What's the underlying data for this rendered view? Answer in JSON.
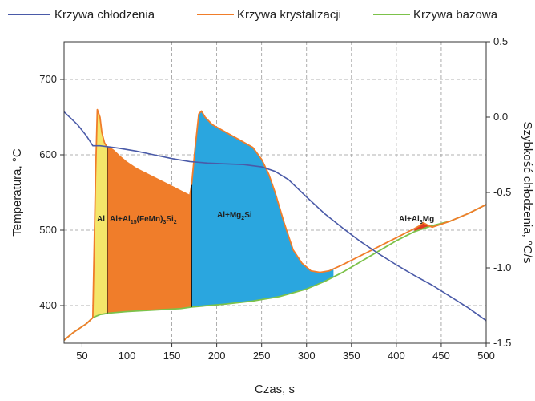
{
  "chart_data": {
    "type": "line",
    "title": "",
    "legend": {
      "placement": "top",
      "entries": [
        {
          "name": "Krzywa chłodzenia",
          "color": "#4a5aa8"
        },
        {
          "name": "Krzywa krystalizacji",
          "color": "#f07d2a"
        },
        {
          "name": "Krzywa bazowa",
          "color": "#7cc24a"
        }
      ]
    },
    "xaxis": {
      "label": "Czas, s",
      "range": [
        30,
        500
      ],
      "ticks": [
        50,
        100,
        150,
        200,
        250,
        300,
        350,
        400,
        450,
        500
      ]
    },
    "yaxis_left": {
      "label": "Temperatura, °C",
      "range": [
        350,
        750
      ],
      "ticks": [
        400,
        500,
        600,
        700
      ]
    },
    "yaxis_right": {
      "label": "Szybkość chłodzenia, °C/s",
      "range": [
        -1.5,
        0.5
      ],
      "ticks": [
        "0.5",
        "0.0",
        "-0.5",
        "-1.0",
        "-1.5"
      ],
      "tick_values": [
        0.5,
        0.0,
        -0.5,
        -1.0,
        -1.5
      ]
    },
    "series": [
      {
        "name": "Krzywa chłodzenia",
        "axis": "left",
        "color": "#4a5aa8",
        "x": [
          30,
          45,
          55,
          62,
          70,
          90,
          110,
          130,
          150,
          170,
          190,
          210,
          230,
          250,
          265,
          280,
          300,
          320,
          340,
          360,
          380,
          400,
          420,
          440,
          460,
          480,
          500
        ],
        "y": [
          657,
          640,
          625,
          612,
          612,
          609,
          605,
          600,
          595,
          591,
          589,
          588,
          587,
          584,
          578,
          567,
          544,
          522,
          503,
          485,
          469,
          454,
          440,
          427,
          412,
          397,
          380
        ]
      },
      {
        "name": "Krzywa krystalizacji",
        "axis": "right",
        "color": "#f07d2a",
        "x": [
          30,
          40,
          55,
          62,
          65,
          67,
          70,
          72,
          75,
          78,
          80,
          85,
          92,
          100,
          110,
          120,
          130,
          140,
          150,
          160,
          170,
          172,
          176,
          180,
          183,
          187,
          195,
          210,
          225,
          240,
          250,
          258,
          265,
          275,
          285,
          295,
          305,
          315,
          325,
          340,
          360,
          380,
          400,
          420,
          426,
          430,
          436,
          440,
          460,
          480,
          500
        ],
        "y": [
          -1.48,
          -1.43,
          -1.37,
          -1.33,
          -0.4,
          0.05,
          0.0,
          -0.1,
          -0.17,
          -0.2,
          -0.2,
          -0.22,
          -0.26,
          -0.3,
          -0.34,
          -0.37,
          -0.4,
          -0.43,
          -0.46,
          -0.49,
          -0.52,
          -0.45,
          -0.2,
          0.02,
          0.04,
          0.0,
          -0.05,
          -0.1,
          -0.15,
          -0.2,
          -0.28,
          -0.38,
          -0.5,
          -0.7,
          -0.88,
          -0.97,
          -1.02,
          -1.03,
          -1.02,
          -0.98,
          -0.92,
          -0.86,
          -0.8,
          -0.74,
          -0.72,
          -0.7,
          -0.72,
          -0.73,
          -0.69,
          -0.64,
          -0.58
        ]
      },
      {
        "name": "Krzywa bazowa",
        "axis": "right",
        "color": "#7cc24a",
        "x": [
          30,
          40,
          55,
          62,
          70,
          80,
          100,
          130,
          160,
          172,
          190,
          210,
          240,
          270,
          300,
          320,
          340,
          360,
          380,
          400,
          420,
          440,
          460,
          480,
          500
        ],
        "y": [
          -1.48,
          -1.43,
          -1.37,
          -1.33,
          -1.31,
          -1.3,
          -1.29,
          -1.28,
          -1.27,
          -1.26,
          -1.25,
          -1.24,
          -1.22,
          -1.19,
          -1.14,
          -1.09,
          -1.03,
          -0.96,
          -0.89,
          -0.82,
          -0.76,
          -0.72,
          -0.69,
          -0.64,
          -0.58
        ]
      }
    ],
    "regions": [
      {
        "label": "Al",
        "from": 62,
        "to": 78,
        "color": "#f4e66a"
      },
      {
        "label": "Al+Al15(FeMn)3Si2",
        "from": 78,
        "to": 172,
        "color": "#f07d2a"
      },
      {
        "label": "Al+Mg2Si",
        "from": 172,
        "to": 330,
        "color": "#2aa6df"
      },
      {
        "label": "Al+Al3Mg",
        "from": 420,
        "to": 440,
        "color": "#e03a22"
      }
    ],
    "region_labels": {
      "al": "Al",
      "al_fe": {
        "pre": "Al+Al",
        "sub1": "15",
        "mid": "(FeMn)",
        "sub2": "3",
        "mid2": "Si",
        "sub3": "2"
      },
      "al_mg2si": {
        "pre": "Al+Mg",
        "sub1": "2",
        "post": "Si"
      },
      "al_al3mg": {
        "pre": "Al+Al",
        "sub1": "3",
        "post": "Mg"
      }
    },
    "grid": "dashed-both",
    "dividers_at_x": [
      78,
      172
    ]
  }
}
